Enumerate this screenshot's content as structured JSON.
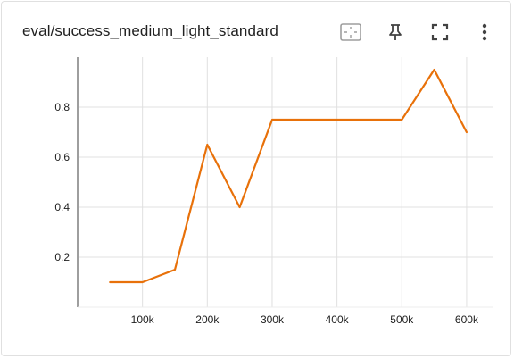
{
  "card": {
    "title": "eval/success_medium_light_standard"
  },
  "toolbar": {
    "icons": [
      "fit-domain-icon",
      "pin-icon",
      "fullscreen-icon",
      "more-vert-icon"
    ]
  },
  "colors": {
    "series": "#e8710a",
    "grid": "#e0e0e0",
    "axis": "#9e9e9e",
    "text": "#212121"
  },
  "chart_data": {
    "type": "line",
    "title": "eval/success_medium_light_standard",
    "xlabel": "",
    "ylabel": "",
    "xlim": [
      0,
      640000
    ],
    "ylim": [
      0,
      1.0
    ],
    "grid": true,
    "x_ticks": [
      {
        "value": 100000,
        "label": "100k"
      },
      {
        "value": 200000,
        "label": "200k"
      },
      {
        "value": 300000,
        "label": "300k"
      },
      {
        "value": 400000,
        "label": "400k"
      },
      {
        "value": 500000,
        "label": "500k"
      },
      {
        "value": 600000,
        "label": "600k"
      }
    ],
    "y_ticks": [
      {
        "value": 0.2,
        "label": "0.2"
      },
      {
        "value": 0.4,
        "label": "0.4"
      },
      {
        "value": 0.6,
        "label": "0.6"
      },
      {
        "value": 0.8,
        "label": "0.8"
      }
    ],
    "series": [
      {
        "x": [
          50000,
          100000,
          150000,
          200000,
          250000,
          300000,
          350000,
          400000,
          450000,
          500000,
          550000,
          600000
        ],
        "y": [
          0.1,
          0.1,
          0.15,
          0.65,
          0.4,
          0.75,
          0.75,
          0.75,
          0.75,
          0.75,
          0.95,
          0.7
        ]
      }
    ]
  }
}
